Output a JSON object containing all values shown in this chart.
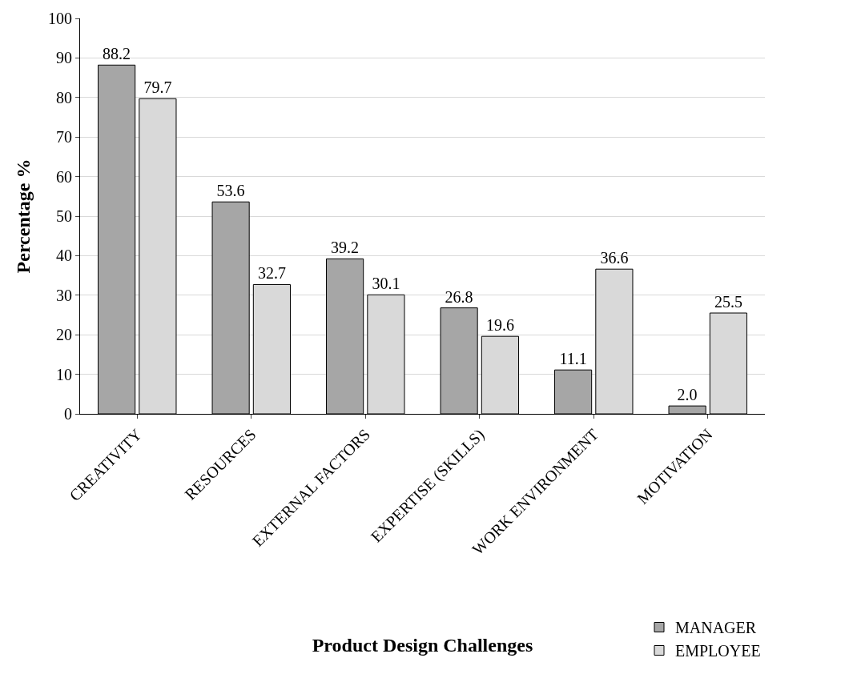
{
  "chart_data": {
    "type": "bar",
    "xlabel": "Product Design Challenges",
    "ylabel": "Percentage %",
    "categories": [
      "CREATIVITY",
      "RESOURCES",
      "EXTERNAL FACTORS",
      "EXPERTISE (SKILLS)",
      "WORK ENVIRONMENT",
      "MOTIVATION"
    ],
    "series": [
      {
        "name": "MANAGER",
        "color": "#a6a6a6",
        "values": [
          88.2,
          53.6,
          39.2,
          26.8,
          11.1,
          2.0
        ]
      },
      {
        "name": "EMPLOYEE",
        "color": "#d9d9d9",
        "values": [
          79.7,
          32.7,
          30.1,
          19.6,
          36.6,
          25.5
        ]
      }
    ],
    "value_labels": [
      [
        "88.2",
        "53.6",
        "39.2",
        "26.8",
        "11.1",
        "2.0"
      ],
      [
        "79.7",
        "32.7",
        "30.1",
        "19.6",
        "36.6",
        "25.5"
      ]
    ],
    "ylim": [
      0,
      100
    ],
    "yticks": [
      0,
      10,
      20,
      30,
      40,
      50,
      60,
      70,
      80,
      90,
      100
    ],
    "grid": "y",
    "legend": "bottom right"
  }
}
